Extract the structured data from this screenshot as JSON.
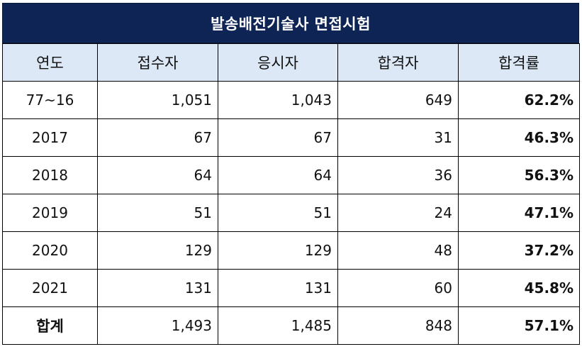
{
  "title": "발송배전기술사 면접시험",
  "headers": [
    "연도",
    "접수자",
    "응시자",
    "합격자",
    "합격률"
  ],
  "rows": [
    {
      "year": "77~16",
      "applicants": "1,051",
      "examinees": "1,043",
      "passed": "649",
      "rate": "62.2%"
    },
    {
      "year": "2017",
      "applicants": "67",
      "examinees": "67",
      "passed": "31",
      "rate": "46.3%"
    },
    {
      "year": "2018",
      "applicants": "64",
      "examinees": "64",
      "passed": "36",
      "rate": "56.3%"
    },
    {
      "year": "2019",
      "applicants": "51",
      "examinees": "51",
      "passed": "24",
      "rate": "47.1%"
    },
    {
      "year": "2020",
      "applicants": "129",
      "examinees": "129",
      "passed": "48",
      "rate": "37.2%"
    },
    {
      "year": "2021",
      "applicants": "131",
      "examinees": "131",
      "passed": "60",
      "rate": "45.8%"
    }
  ],
  "total": {
    "year": "합계",
    "applicants": "1,493",
    "examinees": "1,485",
    "passed": "848",
    "rate": "57.1%"
  },
  "colors": {
    "title_bg": "#0e2454",
    "header_bg": "#dce8f5"
  }
}
